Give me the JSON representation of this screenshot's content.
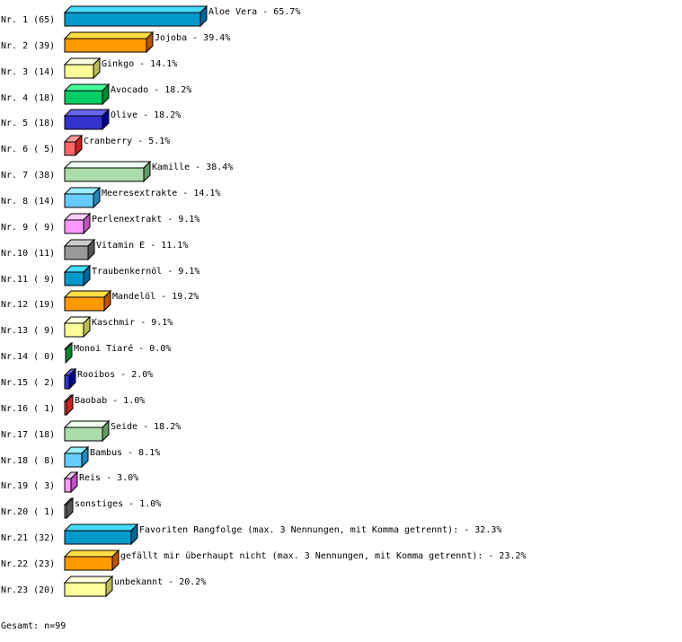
{
  "chart_data": {
    "type": "bar",
    "orientation": "horizontal",
    "style": "3d",
    "categories": [
      "Aloe Vera",
      "Jojoba",
      "Ginkgo",
      "Avocado",
      "Olive",
      "Cranberry",
      "Kamille",
      "Meeresextrakte",
      "Perlenextrakt",
      "Vitamin E",
      "Traubenkernöl",
      "Mandelöl",
      "Kaschmir",
      "Monoi Tiaré",
      "Rooibos",
      "Baobab",
      "Seide",
      "Bambus",
      "Reis",
      "sonstiges",
      "Favoriten Rangfolge (max. 3 Nennungen, mit Komma getrennt):",
      "gefällt mir überhaupt nicht (max. 3 Nennungen, mit Komma getrennt):",
      "unbekannt"
    ],
    "row_labels": [
      "Nr. 1 (65)",
      "Nr. 2 (39)",
      "Nr. 3 (14)",
      "Nr. 4 (18)",
      "Nr. 5 (18)",
      "Nr. 6 ( 5)",
      "Nr. 7 (38)",
      "Nr. 8 (14)",
      "Nr. 9 ( 9)",
      "Nr.10 (11)",
      "Nr.11 ( 9)",
      "Nr.12 (19)",
      "Nr.13 ( 9)",
      "Nr.14 ( 0)",
      "Nr.15 ( 2)",
      "Nr.16 ( 1)",
      "Nr.17 (18)",
      "Nr.18 ( 8)",
      "Nr.19 ( 3)",
      "Nr.20 ( 1)",
      "Nr.21 (32)",
      "Nr.22 (23)",
      "Nr.23 (20)"
    ],
    "counts": [
      65,
      39,
      14,
      18,
      18,
      5,
      38,
      14,
      9,
      11,
      9,
      19,
      9,
      0,
      2,
      1,
      18,
      8,
      3,
      1,
      32,
      23,
      20
    ],
    "values": [
      65.7,
      39.4,
      14.1,
      18.2,
      18.2,
      5.1,
      38.4,
      14.1,
      9.1,
      11.1,
      9.1,
      19.2,
      9.1,
      0.0,
      2.0,
      1.0,
      18.2,
      8.1,
      3.0,
      1.0,
      32.3,
      23.2,
      20.2
    ],
    "value_labels": [
      "65.7%",
      "39.4%",
      "14.1%",
      "18.2%",
      "18.2%",
      "5.1%",
      "38.4%",
      "14.1%",
      "9.1%",
      "11.1%",
      "9.1%",
      "19.2%",
      "9.1%",
      "0.0%",
      "2.0%",
      "1.0%",
      "18.2%",
      "8.1%",
      "3.0%",
      "1.0%",
      "32.3%",
      "23.2%",
      "20.2%"
    ],
    "colors": [
      "#0099cc",
      "#ff9900",
      "#ffff99",
      "#00cc66",
      "#3333cc",
      "#ff6666",
      "#aaddaa",
      "#66ccff",
      "#ff99ff",
      "#999999"
    ],
    "top_colors": [
      "#44ddff",
      "#ffdd44",
      "#ffffdd",
      "#44ff99",
      "#6666ee",
      "#ff9999",
      "#eeffee",
      "#99eeff",
      "#ffccff",
      "#cccccc"
    ],
    "side_colors": [
      "#006699",
      "#bb5500",
      "#bbbb55",
      "#008833",
      "#000088",
      "#cc2222",
      "#669966",
      "#2288bb",
      "#bb55bb",
      "#555555"
    ],
    "grid": false
  },
  "footer": {
    "total": "Gesamt: n=99"
  }
}
